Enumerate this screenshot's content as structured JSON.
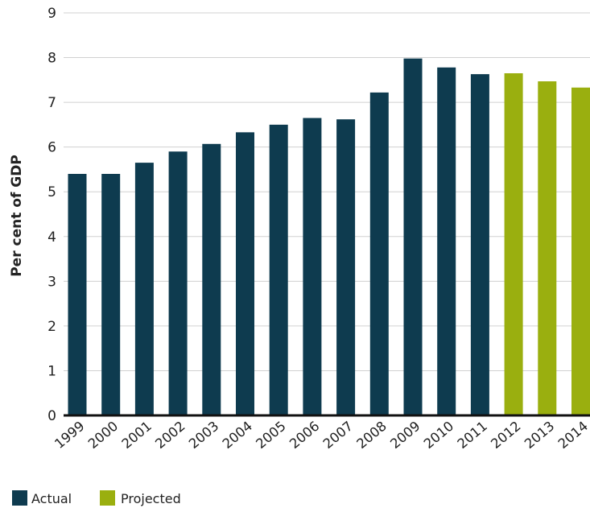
{
  "chart_data": {
    "type": "bar",
    "title": "",
    "xlabel": "",
    "ylabel": "Per cent of GDP",
    "ylim": [
      0,
      9
    ],
    "yticks": [
      0,
      1,
      2,
      3,
      4,
      5,
      6,
      7,
      8,
      9
    ],
    "grid": true,
    "legend_position": "bottom-left",
    "categories": [
      "1999",
      "2000",
      "2001",
      "2002",
      "2003",
      "2004",
      "2005",
      "2006",
      "2007",
      "2008",
      "2009",
      "2010",
      "2011",
      "2012",
      "2013",
      "2014"
    ],
    "values": [
      5.4,
      5.4,
      5.65,
      5.9,
      6.07,
      6.33,
      6.5,
      6.65,
      6.62,
      7.22,
      7.98,
      7.78,
      7.63,
      7.65,
      7.47,
      7.33
    ],
    "status": [
      "actual",
      "actual",
      "actual",
      "actual",
      "actual",
      "actual",
      "actual",
      "actual",
      "actual",
      "actual",
      "actual",
      "actual",
      "actual",
      "projected",
      "projected",
      "projected"
    ],
    "legend": [
      {
        "key": "actual",
        "label": "Actual",
        "color": "#0e3b4f"
      },
      {
        "key": "projected",
        "label": "Projected",
        "color": "#9aaf0f"
      }
    ],
    "colors": {
      "actual": "#0e3b4f",
      "projected": "#9aaf0f",
      "grid": "#d0d0d0",
      "axis": "#111111"
    }
  }
}
